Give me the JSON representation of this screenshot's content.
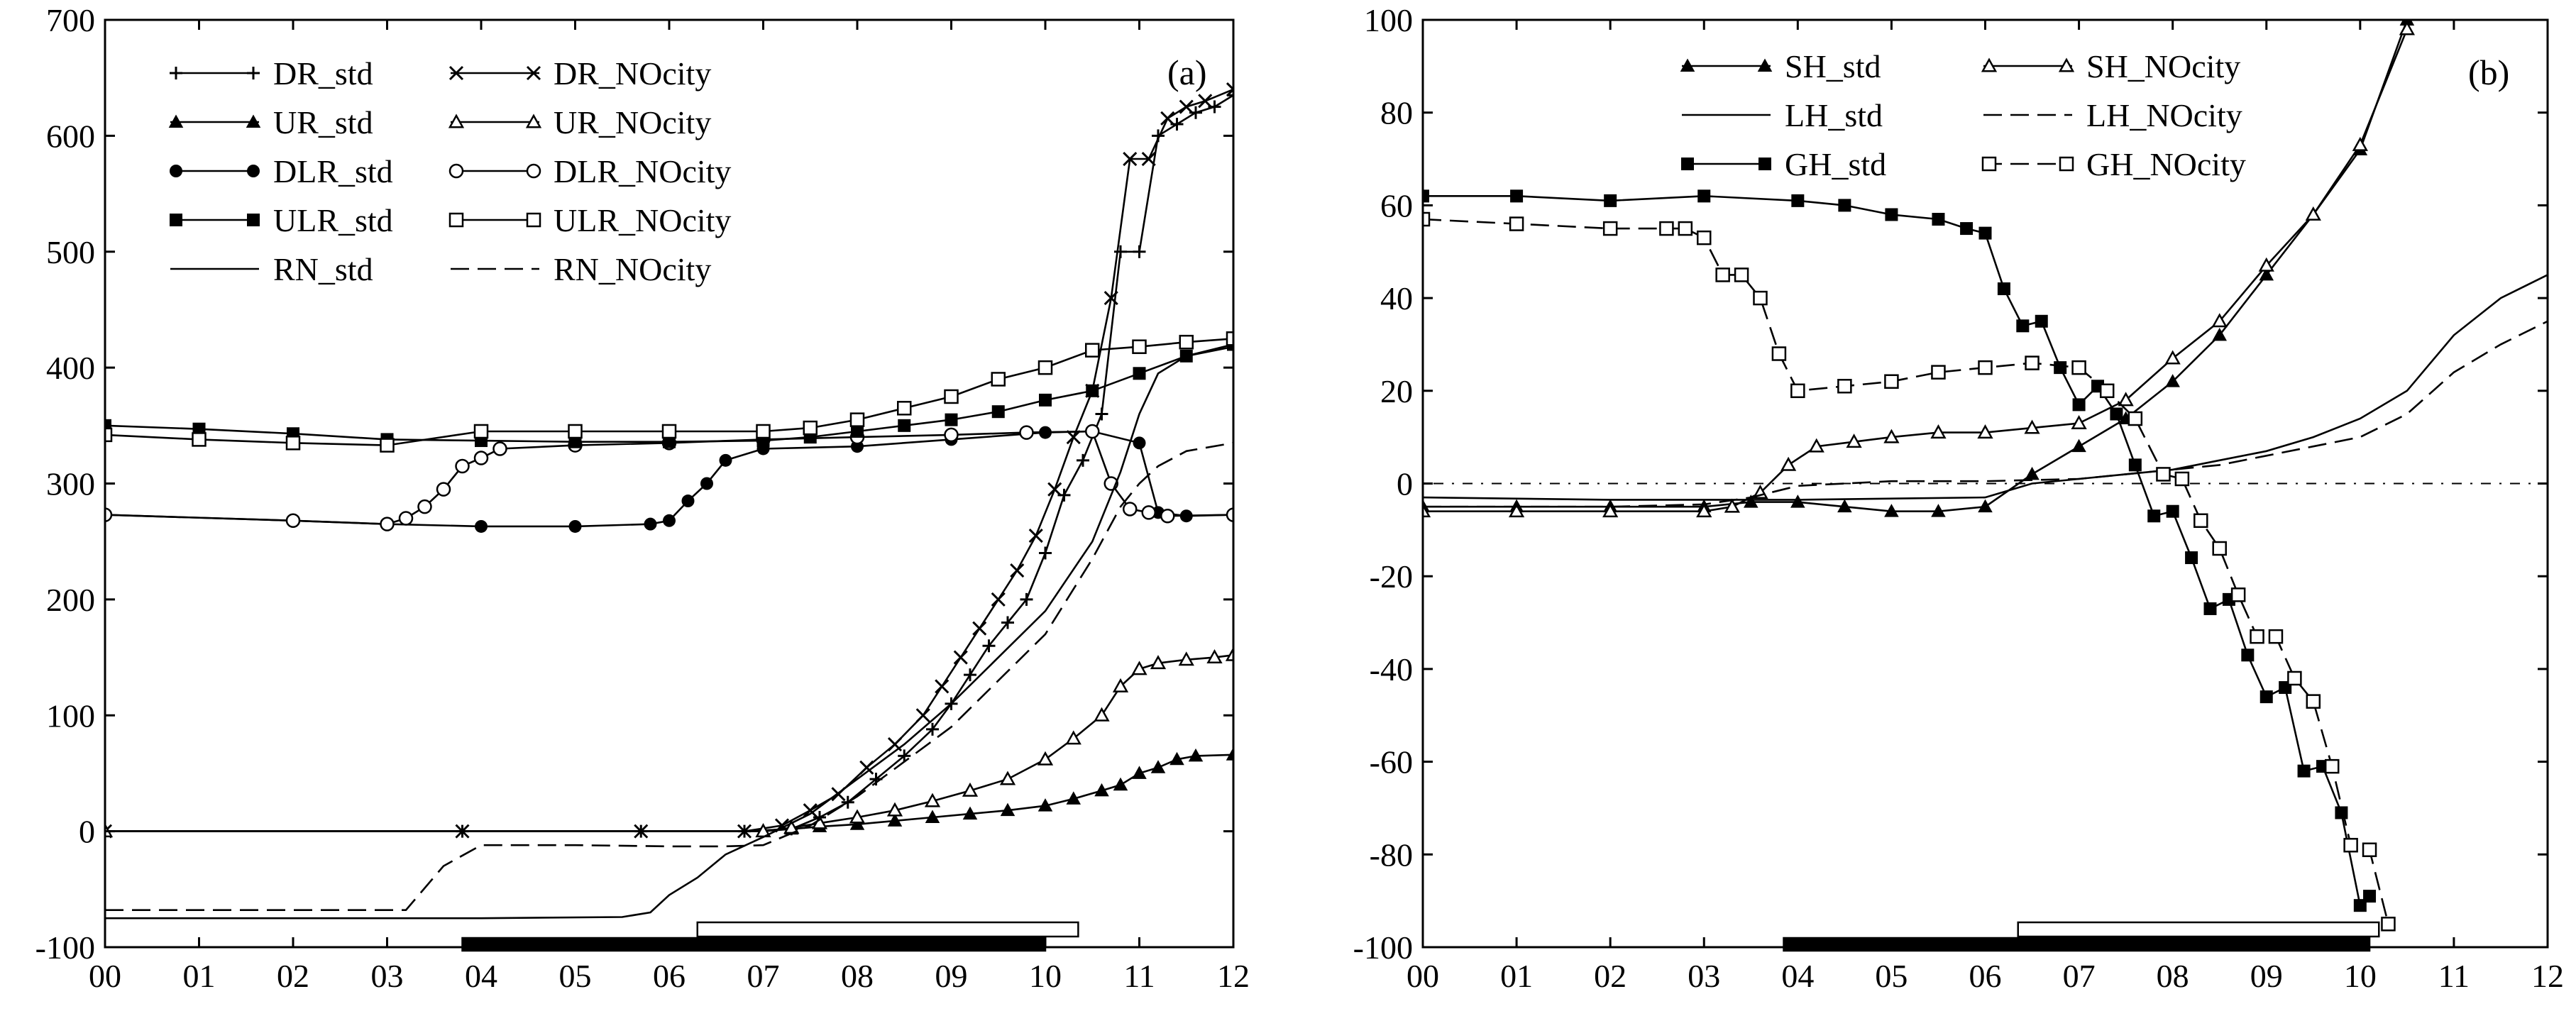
{
  "chart_data": [
    {
      "type": "line",
      "panel_label": "(a)",
      "xlim": [
        0,
        12
      ],
      "ylim": [
        -100,
        700
      ],
      "x_ticks": [
        "00",
        "01",
        "02",
        "03",
        "04",
        "05",
        "06",
        "07",
        "08",
        "09",
        "10",
        "11",
        "12"
      ],
      "y_ticks": [
        -100,
        0,
        100,
        200,
        300,
        400,
        500,
        600,
        700
      ],
      "legend_placement": "top-left",
      "legend_columns": 2,
      "series": [
        {
          "name": "DR_std",
          "line": "solid",
          "marker": "plus",
          "x": [
            0,
            3.8,
            5.7,
            6.8,
            7.3,
            7.6,
            7.9,
            8.2,
            8.5,
            8.8,
            9.0,
            9.2,
            9.4,
            9.6,
            9.8,
            10.0,
            10.2,
            10.4,
            10.6,
            10.8,
            11.0,
            11.2,
            11.4,
            11.6,
            11.8,
            12.0
          ],
          "values": [
            0,
            0,
            0,
            0,
            2,
            12,
            25,
            45,
            65,
            88,
            110,
            135,
            160,
            180,
            200,
            240,
            290,
            320,
            360,
            500,
            500,
            600,
            610,
            620,
            625,
            635
          ]
        },
        {
          "name": "DR_NOcity",
          "line": "solid",
          "marker": "x",
          "x": [
            0,
            3.8,
            5.7,
            6.8,
            7.2,
            7.5,
            7.8,
            8.1,
            8.4,
            8.7,
            8.9,
            9.1,
            9.3,
            9.5,
            9.7,
            9.9,
            10.1,
            10.3,
            10.5,
            10.7,
            10.9,
            11.1,
            11.3,
            11.5,
            11.7,
            12.0
          ],
          "values": [
            0,
            0,
            0,
            0,
            5,
            18,
            32,
            55,
            75,
            100,
            125,
            150,
            175,
            200,
            225,
            255,
            295,
            340,
            380,
            460,
            580,
            580,
            615,
            625,
            630,
            640
          ]
        },
        {
          "name": "UR_std",
          "line": "solid",
          "marker": "filled-triangle",
          "x": [
            0,
            7.0,
            7.3,
            7.6,
            8.0,
            8.4,
            8.8,
            9.2,
            9.6,
            10.0,
            10.3,
            10.6,
            10.8,
            11.0,
            11.2,
            11.4,
            11.6,
            12.0
          ],
          "values": [
            0,
            0,
            2,
            4,
            6,
            9,
            12,
            15,
            18,
            22,
            28,
            35,
            40,
            50,
            55,
            62,
            65,
            66
          ]
        },
        {
          "name": "UR_NOcity",
          "line": "solid",
          "marker": "open-triangle",
          "x": [
            0,
            7.0,
            7.3,
            7.6,
            8.0,
            8.4,
            8.8,
            9.2,
            9.6,
            10.0,
            10.3,
            10.6,
            10.8,
            11.0,
            11.2,
            11.5,
            11.8,
            12.0
          ],
          "values": [
            0,
            0,
            3,
            7,
            12,
            18,
            26,
            35,
            45,
            62,
            80,
            100,
            125,
            140,
            145,
            148,
            150,
            152
          ]
        },
        {
          "name": "DLR_std",
          "line": "solid",
          "marker": "filled-circle",
          "x": [
            0,
            2.0,
            3.0,
            4.0,
            5.0,
            5.8,
            6.0,
            6.2,
            6.4,
            6.6,
            7.0,
            8.0,
            9.0,
            10.0,
            10.5,
            11.0,
            11.2,
            11.5,
            12.0
          ],
          "values": [
            273,
            268,
            265,
            263,
            263,
            265,
            268,
            285,
            300,
            320,
            330,
            332,
            338,
            344,
            345,
            335,
            275,
            272,
            273
          ]
        },
        {
          "name": "DLR_NOcity",
          "line": "solid",
          "marker": "open-circle",
          "x": [
            0,
            2.0,
            3.0,
            3.2,
            3.4,
            3.6,
            3.8,
            4.0,
            4.2,
            5.0,
            6.0,
            7.0,
            8.0,
            9.0,
            9.8,
            10.5,
            10.7,
            10.9,
            11.1,
            11.3,
            12.0
          ],
          "values": [
            273,
            268,
            265,
            270,
            280,
            295,
            315,
            322,
            330,
            333,
            335,
            338,
            340,
            342,
            344,
            345,
            300,
            278,
            275,
            272,
            273
          ]
        },
        {
          "name": "ULR_std",
          "line": "solid",
          "marker": "filled-square",
          "x": [
            0,
            1.0,
            2.0,
            3.0,
            4.0,
            5.0,
            6.0,
            7.0,
            7.5,
            8.0,
            8.5,
            9.0,
            9.5,
            10.0,
            10.5,
            11.0,
            11.5,
            12.0
          ],
          "values": [
            350,
            347,
            343,
            338,
            337,
            336,
            336,
            337,
            340,
            345,
            350,
            355,
            362,
            372,
            380,
            395,
            410,
            420
          ]
        },
        {
          "name": "ULR_NOcity",
          "line": "solid",
          "marker": "open-square",
          "x": [
            0,
            1.0,
            2.0,
            3.0,
            4.0,
            5.0,
            6.0,
            7.0,
            7.5,
            8.0,
            8.5,
            9.0,
            9.5,
            10.0,
            10.5,
            11.0,
            11.5,
            12.0
          ],
          "values": [
            342,
            338,
            335,
            333,
            345,
            345,
            345,
            345,
            348,
            355,
            365,
            375,
            390,
            400,
            415,
            418,
            422,
            425
          ]
        },
        {
          "name": "RN_std",
          "line": "solid",
          "marker": "none",
          "x": [
            0,
            2.0,
            4.0,
            5.5,
            5.8,
            6.0,
            6.3,
            6.6,
            7.0,
            7.5,
            8.0,
            8.5,
            9.0,
            9.5,
            10.0,
            10.5,
            10.8,
            11.0,
            11.2,
            11.5,
            12.0
          ],
          "values": [
            -75,
            -75,
            -75,
            -74,
            -70,
            -55,
            -40,
            -20,
            -5,
            15,
            45,
            75,
            110,
            150,
            190,
            250,
            310,
            360,
            395,
            410,
            418
          ]
        },
        {
          "name": "RN_NOcity",
          "line": "dashed",
          "marker": "none",
          "x": [
            0,
            2.0,
            3.2,
            3.6,
            4.0,
            5.0,
            6.0,
            6.6,
            7.0,
            7.5,
            8.0,
            8.5,
            9.0,
            9.5,
            10.0,
            10.5,
            10.8,
            11.0,
            11.2,
            11.5,
            12.0
          ],
          "values": [
            -68,
            -68,
            -68,
            -30,
            -12,
            -12,
            -13,
            -13,
            -12,
            5,
            30,
            60,
            90,
            130,
            170,
            235,
            280,
            300,
            315,
            328,
            335
          ]
        }
      ],
      "bars": [
        {
          "fill": "black",
          "x_start": 3.8,
          "x_end": 10.0
        },
        {
          "fill": "white",
          "x_start": 6.3,
          "x_end": 10.35
        }
      ]
    },
    {
      "type": "line",
      "panel_label": "(b)",
      "xlim": [
        0,
        12
      ],
      "ylim": [
        -100,
        100
      ],
      "x_ticks": [
        "00",
        "01",
        "02",
        "03",
        "04",
        "05",
        "06",
        "07",
        "08",
        "09",
        "10",
        "11",
        "12"
      ],
      "y_ticks": [
        -100,
        -80,
        -60,
        -40,
        -20,
        0,
        20,
        40,
        60,
        80,
        100
      ],
      "zero_line": "dash-dot",
      "legend_placement": "top-center",
      "legend_columns": 2,
      "series": [
        {
          "name": "SH_std",
          "line": "solid",
          "marker": "filled-triangle",
          "x": [
            0,
            1.0,
            2.0,
            3.0,
            3.5,
            4.0,
            4.5,
            5.0,
            5.5,
            6.0,
            6.5,
            7.0,
            7.5,
            8.0,
            8.5,
            9.0,
            9.5,
            10.0,
            10.5,
            11.0
          ],
          "values": [
            -5,
            -5,
            -5,
            -5,
            -4,
            -4,
            -5,
            -6,
            -6,
            -5,
            2,
            8,
            14,
            22,
            32,
            45,
            58,
            72,
            100,
            120
          ]
        },
        {
          "name": "SH_NOcity",
          "line": "solid",
          "marker": "open-triangle",
          "x": [
            0,
            1.0,
            2.0,
            3.0,
            3.3,
            3.6,
            3.9,
            4.2,
            4.6,
            5.0,
            5.5,
            6.0,
            6.5,
            7.0,
            7.5,
            8.0,
            8.5,
            9.0,
            9.5,
            10.0,
            10.5,
            11.0
          ],
          "values": [
            -6,
            -6,
            -6,
            -6,
            -5,
            -2,
            4,
            8,
            9,
            10,
            11,
            11,
            12,
            13,
            18,
            27,
            35,
            47,
            58,
            73,
            98,
            120
          ]
        },
        {
          "name": "LH_std",
          "line": "solid",
          "marker": "none",
          "x": [
            0,
            2.0,
            4.0,
            6.0,
            6.5,
            7.0,
            7.5,
            8.0,
            8.5,
            9.0,
            9.5,
            10.0,
            10.5,
            11.0,
            11.5,
            12.0
          ],
          "values": [
            -3,
            -3.5,
            -3.5,
            -3,
            0,
            1,
            2,
            3,
            5,
            7,
            10,
            14,
            20,
            32,
            40,
            45
          ]
        },
        {
          "name": "LH_NOcity",
          "line": "dashed",
          "marker": "none",
          "x": [
            0,
            2.0,
            3.0,
            3.5,
            4.0,
            5.0,
            6.0,
            7.0,
            7.5,
            8.0,
            8.5,
            9.0,
            9.5,
            10.0,
            10.5,
            11.0,
            11.5,
            12.0
          ],
          "values": [
            -5,
            -5,
            -4.5,
            -3,
            -0.5,
            0.5,
            0.5,
            1,
            2,
            3,
            4,
            6,
            8,
            10,
            15,
            24,
            30,
            35
          ]
        },
        {
          "name": "GH_std",
          "line": "solid",
          "marker": "filled-square",
          "x": [
            0,
            1.0,
            2.0,
            3.0,
            4.0,
            4.5,
            5.0,
            5.5,
            5.8,
            6.0,
            6.2,
            6.4,
            6.6,
            6.8,
            7.0,
            7.2,
            7.4,
            7.6,
            7.8,
            8.0,
            8.2,
            8.4,
            8.6,
            8.8,
            9.0,
            9.2,
            9.4,
            9.6,
            9.8,
            10.0,
            10.1
          ],
          "values": [
            62,
            62,
            61,
            62,
            61,
            60,
            58,
            57,
            55,
            54,
            42,
            34,
            35,
            25,
            17,
            21,
            15,
            4,
            -7,
            -6,
            -16,
            -27,
            -25,
            -37,
            -46,
            -44,
            -62,
            -61,
            -71,
            -91,
            -89
          ]
        },
        {
          "name": "GH_NOcity",
          "line": "dashed",
          "marker": "open-square",
          "x": [
            0,
            1.0,
            2.0,
            2.6,
            2.8,
            3.0,
            3.2,
            3.4,
            3.6,
            3.8,
            4.0,
            4.5,
            5.0,
            5.5,
            6.0,
            6.5,
            7.0,
            7.3,
            7.6,
            7.9,
            8.1,
            8.3,
            8.5,
            8.7,
            8.9,
            9.1,
            9.3,
            9.5,
            9.7,
            9.9,
            10.1,
            10.3
          ],
          "values": [
            57,
            56,
            55,
            55,
            55,
            53,
            45,
            45,
            40,
            28,
            20,
            21,
            22,
            24,
            25,
            26,
            25,
            20,
            14,
            2,
            1,
            -8,
            -14,
            -24,
            -33,
            -33,
            -42,
            -47,
            -61,
            -78,
            -79,
            -95
          ]
        }
      ],
      "bars": [
        {
          "fill": "black",
          "x_start": 3.85,
          "x_end": 10.1
        },
        {
          "fill": "white",
          "x_start": 6.35,
          "x_end": 10.2
        }
      ]
    }
  ]
}
